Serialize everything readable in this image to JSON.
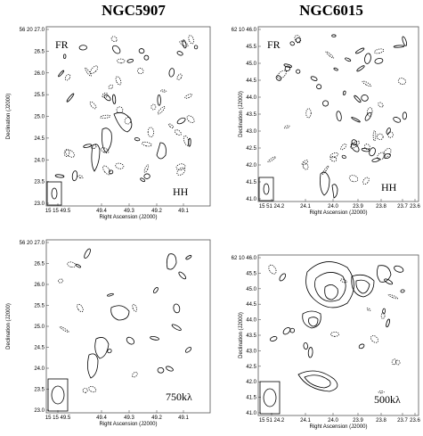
{
  "titles": [
    "NGC5907",
    "NGC6015"
  ],
  "panels": [
    {
      "y_ticks": [
        "56 20 27.0",
        "26.5",
        "26.0",
        "25.5",
        "25.0",
        "24.5",
        "24.0",
        "23.5",
        "23.0"
      ],
      "x_ticks": [
        "15 15 49.5",
        "49.4",
        "49.3",
        "49.2",
        "49.1"
      ],
      "x_label": "Right Ascension (J2000)",
      "y_label": "Declination (J2000)",
      "annotations": [
        "FR",
        "HH"
      ]
    },
    {
      "y_ticks": [
        "62 10 46.0",
        "45.5",
        "45.0",
        "44.5",
        "44.0",
        "43.5",
        "43.0",
        "42.5",
        "42.0",
        "41.5",
        "41.0"
      ],
      "x_ticks": [
        "15 51 24.2",
        "24.1",
        "24.0",
        "23.9",
        "23.8",
        "23.7",
        "23.6"
      ],
      "x_label": "Right Ascension (J2000)",
      "y_label": "Declination (J2000)",
      "annotations": [
        "FR",
        "HH"
      ]
    },
    {
      "y_ticks": [
        "56 20 27.0",
        "26.5",
        "26.0",
        "25.5",
        "25.0",
        "24.5",
        "24.0",
        "23.5",
        "23.0"
      ],
      "x_ticks": [
        "15 15 49.5",
        "49.4",
        "49.3",
        "49.2",
        "49.1"
      ],
      "x_label": "Right Ascension (J2000)",
      "y_label": "Declination (J2000)",
      "annotations": [
        "750kλ"
      ]
    },
    {
      "y_ticks": [
        "62 10 46.0",
        "45.5",
        "45.0",
        "44.5",
        "44.0",
        "43.5",
        "43.0",
        "42.5",
        "42.0",
        "41.5",
        "41.0"
      ],
      "x_ticks": [
        "15 51 24.2",
        "24.1",
        "24.0",
        "23.9",
        "23.8",
        "23.7",
        "23.6"
      ],
      "x_label": "Right Ascension (J2000)",
      "y_label": "Declination (J2000)",
      "annotations": [
        "500kλ"
      ]
    }
  ]
}
